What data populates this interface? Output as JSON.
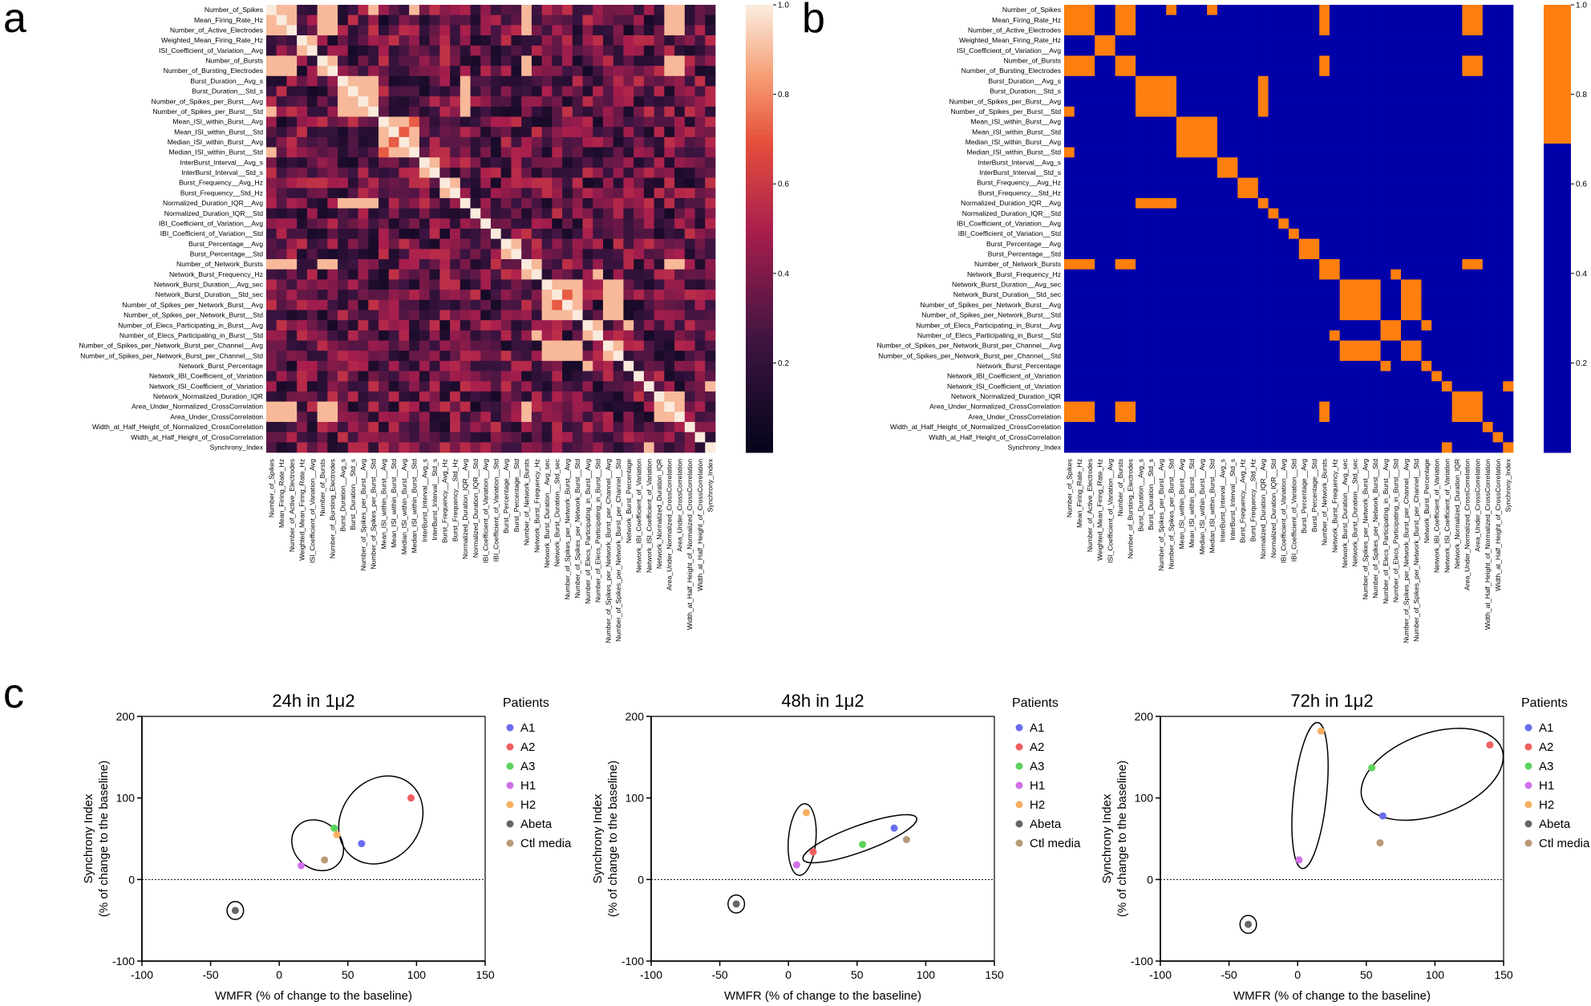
{
  "panel_labels": [
    "a",
    "b",
    "c"
  ],
  "heatmap_ticks": [
    "1.0",
    "0.8",
    "0.6",
    "0.4",
    "0.2"
  ],
  "variables": [
    "Number_of_Spikes",
    "Mean_Firing_Rate_Hz",
    "Number_of_Active_Electrodes",
    "Weighted_Mean_Firing_Rate_Hz",
    "ISI_Coefficient_of_Variation__Avg",
    "Number_of_Bursts",
    "Number_of_Bursting_Electrodes",
    "Burst_Duration__Avg_s",
    "Burst_Duration__Std_s",
    "Number_of_Spikes_per_Burst__Avg",
    "Number_of_Spikes_per_Burst__Std",
    "Mean_ISI_within_Burst__Avg",
    "Mean_ISI_within_Burst__Std",
    "Median_ISI_within_Burst__Avg",
    "Median_ISI_within_Burst__Std",
    "InterBurst_Interval__Avg_s",
    "InterBurst_Interval__Std_s",
    "Burst_Frequency__Avg_Hz",
    "Burst_Frequency__Std_Hz",
    "Normalized_Duration_IQR__Avg",
    "Normalized_Duration_IQR__Std",
    "IBI_Coefficient_of_Variation__Avg",
    "IBI_Coefficient_of_Variation__Std",
    "Burst_Percentage__Avg",
    "Burst_Percentage__Std",
    "Number_of_Network_Bursts",
    "Network_Burst_Frequency_Hz",
    "Network_Burst_Duration__Avg_sec",
    "Network_Burst_Duration__Std_sec",
    "Number_of_Spikes_per_Network_Burst__Avg",
    "Number_of_Spikes_per_Network_Burst__Std",
    "Number_of_Elecs_Participating_in_Burst__Avg",
    "Number_of_Elecs_Participating_in_Burst__Std",
    "Number_of_Spikes_per_Network_Burst_per_Channel__Avg",
    "Number_of_Spikes_per_Network_Burst_per_Channel__Std",
    "Network_Burst_Percentage",
    "Network_IBI_Coefficient_of_Variation",
    "Network_ISI_Coefficient_of_Variation",
    "Network_Normalized_Duration_IQR",
    "Area_Under_Normalized_CrossCorrelation",
    "Area_Under_CrossCorrelation",
    "Width_at_Half_Height_of_Normalized_CrossCorrelation",
    "Width_at_Half_Height_of_CrossCorrelation",
    "Synchrony_Index"
  ],
  "colors": {
    "high": "#ff7f0e",
    "low": "#0000a8",
    "A1": "#6a6cf0",
    "A2": "#f06060",
    "A3": "#5dd35d",
    "H1": "#d070e8",
    "H2": "#f5b060",
    "Abeta": "#666666",
    "Ctl media": "#b89a78"
  },
  "chart_data": [
    {
      "type": "heatmap",
      "panel": "a",
      "title": "",
      "colorbar_range": [
        0.0,
        1.0
      ],
      "note": "correlation matrix of 44 MEA parameters; cell values estimated from color (symmetric)",
      "strong_blocks": [
        [
          0,
          1,
          2,
          5,
          6,
          25,
          39,
          40
        ],
        [
          7,
          8,
          9,
          10,
          19
        ],
        [
          11,
          12,
          13,
          14
        ],
        [
          15,
          16
        ],
        [
          23,
          24
        ],
        [
          27,
          28,
          29,
          30,
          33,
          34
        ],
        [
          38,
          39
        ]
      ]
    },
    {
      "type": "heatmap",
      "panel": "b",
      "title": "",
      "colorbar_range": [
        0.0,
        1.0
      ],
      "binary_threshold": 0.7,
      "pairs_above_threshold": [
        [
          0,
          1
        ],
        [
          0,
          2
        ],
        [
          0,
          5
        ],
        [
          0,
          6
        ],
        [
          0,
          10
        ],
        [
          0,
          14
        ],
        [
          0,
          25
        ],
        [
          0,
          39
        ],
        [
          0,
          40
        ],
        [
          1,
          2
        ],
        [
          1,
          5
        ],
        [
          1,
          6
        ],
        [
          1,
          25
        ],
        [
          1,
          39
        ],
        [
          1,
          40
        ],
        [
          2,
          5
        ],
        [
          2,
          6
        ],
        [
          2,
          25
        ],
        [
          2,
          39
        ],
        [
          2,
          40
        ],
        [
          3,
          4
        ],
        [
          5,
          6
        ],
        [
          5,
          25
        ],
        [
          5,
          39
        ],
        [
          5,
          40
        ],
        [
          6,
          25
        ],
        [
          6,
          39
        ],
        [
          6,
          40
        ],
        [
          7,
          8
        ],
        [
          7,
          9
        ],
        [
          7,
          10
        ],
        [
          7,
          19
        ],
        [
          8,
          9
        ],
        [
          8,
          10
        ],
        [
          8,
          19
        ],
        [
          9,
          10
        ],
        [
          9,
          19
        ],
        [
          10,
          19
        ],
        [
          11,
          12
        ],
        [
          11,
          13
        ],
        [
          12,
          14
        ],
        [
          13,
          14
        ],
        [
          15,
          16
        ],
        [
          17,
          18
        ],
        [
          23,
          24
        ],
        [
          25,
          26
        ],
        [
          25,
          39
        ],
        [
          25,
          40
        ],
        [
          26,
          32
        ],
        [
          27,
          28
        ],
        [
          27,
          29
        ],
        [
          27,
          30
        ],
        [
          27,
          33
        ],
        [
          27,
          34
        ],
        [
          28,
          30
        ],
        [
          28,
          33
        ],
        [
          28,
          34
        ],
        [
          29,
          30
        ],
        [
          29,
          33
        ],
        [
          29,
          34
        ],
        [
          30,
          33
        ],
        [
          30,
          34
        ],
        [
          31,
          32
        ],
        [
          31,
          35
        ],
        [
          33,
          34
        ],
        [
          38,
          39
        ],
        [
          38,
          40
        ],
        [
          39,
          40
        ],
        [
          37,
          43
        ]
      ]
    },
    {
      "type": "scatter",
      "panel": "c",
      "title": "24h in 1μ2",
      "xlabel": "WMFR (% of change to the baseline)",
      "ylabel": "Synchrony Index",
      "ylabel2": "(% of change to the baseline)",
      "xlim": [
        -100,
        150
      ],
      "ylim": [
        -100,
        200
      ],
      "xticks": [
        "-100",
        "-50",
        "0",
        "50",
        "100",
        "150"
      ],
      "yticks": [
        "200",
        "100",
        "0",
        "-100"
      ],
      "legend_title": "Patients",
      "legend": [
        "A1",
        "A2",
        "A3",
        "H1",
        "H2",
        "Abeta",
        "Ctl media"
      ],
      "points": [
        {
          "group": "A1",
          "x": 60,
          "y": 44
        },
        {
          "group": "A2",
          "x": 96,
          "y": 100
        },
        {
          "group": "A3",
          "x": 40,
          "y": 63
        },
        {
          "group": "H1",
          "x": 16,
          "y": 17
        },
        {
          "group": "H2",
          "x": 42,
          "y": 55
        },
        {
          "group": "Abeta",
          "x": -32,
          "y": -38
        },
        {
          "group": "Ctl media",
          "x": 33,
          "y": 24
        }
      ],
      "ellipses": [
        {
          "cx": 74,
          "cy": 73,
          "rx": 34,
          "ry": 48,
          "angle": -52
        },
        {
          "cx": 28,
          "cy": 42,
          "rx": 17,
          "ry": 34,
          "angle": -48
        },
        {
          "cx": -32,
          "cy": -38,
          "rx": 6,
          "ry": 11,
          "angle": 0
        }
      ]
    },
    {
      "type": "scatter",
      "panel": "c",
      "title": "48h in 1μ2",
      "xlabel": "WMFR (% of change to the baseline)",
      "ylabel": "Synchrony Index",
      "ylabel2": "(% of change to the baseline)",
      "xlim": [
        -100,
        150
      ],
      "ylim": [
        -100,
        200
      ],
      "xticks": [
        "-100",
        "-50",
        "0",
        "50",
        "100",
        "150"
      ],
      "yticks": [
        "200",
        "100",
        "0",
        "-100"
      ],
      "legend_title": "Patients",
      "legend": [
        "A1",
        "A2",
        "A3",
        "H1",
        "H2",
        "Abeta",
        "Ctl media"
      ],
      "points": [
        {
          "group": "A1",
          "x": 77,
          "y": 63
        },
        {
          "group": "A2",
          "x": 18,
          "y": 34
        },
        {
          "group": "A3",
          "x": 54,
          "y": 43
        },
        {
          "group": "H1",
          "x": 6,
          "y": 18
        },
        {
          "group": "H2",
          "x": 13,
          "y": 82
        },
        {
          "group": "Abeta",
          "x": -38,
          "y": -30
        },
        {
          "group": "Ctl media",
          "x": 86,
          "y": 49
        }
      ],
      "ellipses": [
        {
          "cx": 10,
          "cy": 49,
          "rx": 10,
          "ry": 44,
          "angle": 5
        },
        {
          "cx": 52,
          "cy": 50,
          "rx": 44,
          "ry": 16,
          "angle": -20
        },
        {
          "cx": -38,
          "cy": -30,
          "rx": 6,
          "ry": 11,
          "angle": 0
        }
      ]
    },
    {
      "type": "scatter",
      "panel": "c",
      "title": "72h in 1μ2",
      "xlabel": "WMFR (% of change to the baseline)",
      "ylabel": "Synchrony Index",
      "ylabel2": "(% of change to the baseline)",
      "xlim": [
        -100,
        150
      ],
      "ylim": [
        -100,
        200
      ],
      "xticks": [
        "-100",
        "-50",
        "0",
        "50",
        "100",
        "150"
      ],
      "yticks": [
        "200",
        "100",
        "0",
        "-100"
      ],
      "legend_title": "Patients",
      "legend": [
        "A1",
        "A2",
        "A3",
        "H1",
        "H2",
        "Abeta",
        "Ctl media"
      ],
      "points": [
        {
          "group": "A1",
          "x": 62,
          "y": 78
        },
        {
          "group": "A2",
          "x": 140,
          "y": 165
        },
        {
          "group": "A3",
          "x": 54,
          "y": 137
        },
        {
          "group": "H1",
          "x": 1,
          "y": 24
        },
        {
          "group": "H2",
          "x": 17,
          "y": 182
        },
        {
          "group": "Abeta",
          "x": -36,
          "y": -55
        },
        {
          "group": "Ctl media",
          "x": 60,
          "y": 45
        }
      ],
      "ellipses": [
        {
          "cx": 9,
          "cy": 103,
          "rx": 12,
          "ry": 90,
          "angle": 6
        },
        {
          "cx": 98,
          "cy": 129,
          "rx": 54,
          "ry": 50,
          "angle": -20
        },
        {
          "cx": -36,
          "cy": -55,
          "rx": 6,
          "ry": 11,
          "angle": 0
        }
      ]
    }
  ]
}
